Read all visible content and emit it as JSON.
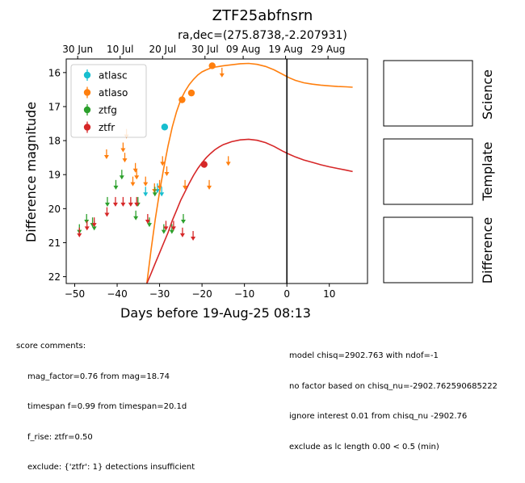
{
  "chart_data": {
    "type": "scatter",
    "title": "ZTF25abfnsrn",
    "subtitle": "ra,dec=(275.8738,-2.207931)",
    "xlabel": "Days before 19-Aug-25 08:13",
    "ylabel": "Difference magnitude",
    "xlim": [
      -52,
      19
    ],
    "ylim": [
      22.2,
      15.6
    ],
    "y_inverted": true,
    "x_ticks": [
      -50,
      -40,
      -30,
      -20,
      -10,
      0,
      10
    ],
    "x_tick_labels": [
      "−50",
      "−40",
      "−30",
      "−20",
      "−10",
      "0",
      "10"
    ],
    "y_ticks": [
      16,
      17,
      18,
      19,
      20,
      21,
      22
    ],
    "y_tick_labels": [
      "16",
      "17",
      "18",
      "19",
      "20",
      "21",
      "22"
    ],
    "top_axis_ticks": [
      {
        "x": -49.3,
        "label": "30 Jun"
      },
      {
        "x": -39.3,
        "label": "10 Jul"
      },
      {
        "x": -29.3,
        "label": "20 Jul"
      },
      {
        "x": -19.3,
        "label": "30 Jul"
      },
      {
        "x": -10.3,
        "label": "09 Aug"
      },
      {
        "x": -0.3,
        "label": "19 Aug"
      },
      {
        "x": 9.7,
        "label": "29 Aug"
      }
    ],
    "vline_x": 0,
    "legend": {
      "placement": "top-left",
      "entries": [
        "atlasc",
        "atlaso",
        "ztfg",
        "ztfr"
      ]
    },
    "series": [
      {
        "name": "atlasc",
        "color": "#17becf",
        "detections": [
          {
            "x": -28.8,
            "y": 17.6
          }
        ],
        "upper_limits": [
          {
            "x": -33.3,
            "y": 19.5
          },
          {
            "x": -30.5,
            "y": 19.4
          },
          {
            "x": -29.5,
            "y": 19.5
          }
        ]
      },
      {
        "name": "atlaso",
        "color": "#ff7f0e",
        "detections": [
          {
            "x": -24.7,
            "y": 16.8
          },
          {
            "x": -22.5,
            "y": 16.6
          },
          {
            "x": -17.6,
            "y": 15.8
          }
        ],
        "upper_limits": [
          {
            "x": -42.5,
            "y": 18.4
          },
          {
            "x": -38.6,
            "y": 18.2
          },
          {
            "x": -38.2,
            "y": 18.5
          },
          {
            "x": -37.8,
            "y": 17.8
          },
          {
            "x": -36.3,
            "y": 19.2
          },
          {
            "x": -35.7,
            "y": 18.8
          },
          {
            "x": -35.4,
            "y": 19.0
          },
          {
            "x": -33.3,
            "y": 19.2
          },
          {
            "x": -31.2,
            "y": 19.4
          },
          {
            "x": -30.0,
            "y": 19.3
          },
          {
            "x": -29.3,
            "y": 18.6
          },
          {
            "x": -28.3,
            "y": 18.9
          },
          {
            "x": -24.0,
            "y": 19.3
          },
          {
            "x": -18.3,
            "y": 19.3
          },
          {
            "x": -15.3,
            "y": 16.0
          },
          {
            "x": -13.8,
            "y": 18.6
          }
        ]
      },
      {
        "name": "ztfg",
        "color": "#2ca02c",
        "detections": [],
        "upper_limits": [
          {
            "x": -48.9,
            "y": 20.6
          },
          {
            "x": -47.2,
            "y": 20.3
          },
          {
            "x": -45.8,
            "y": 20.4
          },
          {
            "x": -45.4,
            "y": 20.5
          },
          {
            "x": -42.3,
            "y": 19.8
          },
          {
            "x": -40.3,
            "y": 19.3
          },
          {
            "x": -38.9,
            "y": 19.0
          },
          {
            "x": -35.6,
            "y": 20.2
          },
          {
            "x": -35.1,
            "y": 19.8
          },
          {
            "x": -32.4,
            "y": 20.4
          },
          {
            "x": -31.1,
            "y": 19.5
          },
          {
            "x": -29.0,
            "y": 20.6
          },
          {
            "x": -27.1,
            "y": 20.6
          },
          {
            "x": -24.4,
            "y": 20.3
          }
        ]
      },
      {
        "name": "ztfr",
        "color": "#d62728",
        "detections": [
          {
            "x": -19.5,
            "y": 18.7
          }
        ],
        "upper_limits": [
          {
            "x": -48.9,
            "y": 20.7
          },
          {
            "x": -47.1,
            "y": 20.5
          },
          {
            "x": -45.4,
            "y": 20.4
          },
          {
            "x": -42.4,
            "y": 20.1
          },
          {
            "x": -40.4,
            "y": 19.8
          },
          {
            "x": -38.6,
            "y": 19.8
          },
          {
            "x": -36.8,
            "y": 19.8
          },
          {
            "x": -35.4,
            "y": 19.8
          },
          {
            "x": -32.8,
            "y": 20.3
          },
          {
            "x": -28.5,
            "y": 20.5
          },
          {
            "x": -26.7,
            "y": 20.5
          },
          {
            "x": -24.6,
            "y": 20.7
          },
          {
            "x": -22.1,
            "y": 20.8
          }
        ]
      }
    ],
    "model_curves": [
      {
        "name": "atlaso",
        "color": "#ff7f0e",
        "x": [
          -33.0,
          -32.0,
          -31.0,
          -30.0,
          -29.0,
          -28.0,
          -27.0,
          -26.0,
          -25.0,
          -24.0,
          -23.0,
          -22.0,
          -21.0,
          -20.0,
          -19.0,
          -18.0,
          -17.0,
          -16.0,
          -15.0,
          -13.0,
          -11.0,
          -9.0,
          -7.0,
          -5.0,
          -3.0,
          -1.0,
          0.5,
          2.0,
          4.0,
          6.0,
          8.0,
          10.0,
          12.0,
          14.0,
          15.5
        ],
        "y": [
          22.2,
          21.2,
          20.3,
          19.5,
          18.8,
          18.15,
          17.6,
          17.15,
          16.8,
          16.55,
          16.35,
          16.2,
          16.07,
          15.98,
          15.92,
          15.87,
          15.84,
          15.82,
          15.8,
          15.77,
          15.74,
          15.73,
          15.76,
          15.82,
          15.92,
          16.05,
          16.15,
          16.23,
          16.3,
          16.34,
          16.37,
          16.39,
          16.41,
          16.42,
          16.43
        ]
      },
      {
        "name": "ztfr",
        "color": "#d62728",
        "x": [
          -33.0,
          -32.0,
          -31.0,
          -30.0,
          -29.0,
          -28.0,
          -27.0,
          -26.0,
          -25.0,
          -24.0,
          -23.0,
          -22.0,
          -21.0,
          -20.0,
          -19.0,
          -18.0,
          -17.0,
          -16.0,
          -15.0,
          -13.0,
          -11.0,
          -9.0,
          -7.0,
          -5.0,
          -3.0,
          -1.0,
          0.5,
          2.0,
          4.0,
          6.0,
          8.0,
          10.0,
          12.0,
          14.0,
          15.5
        ],
        "y": [
          22.2,
          21.9,
          21.6,
          21.3,
          21.0,
          20.7,
          20.35,
          20.05,
          19.75,
          19.5,
          19.25,
          19.02,
          18.82,
          18.65,
          18.5,
          18.38,
          18.27,
          18.19,
          18.12,
          18.03,
          17.98,
          17.96,
          17.99,
          18.06,
          18.17,
          18.31,
          18.4,
          18.48,
          18.57,
          18.64,
          18.71,
          18.77,
          18.82,
          18.87,
          18.91
        ]
      }
    ],
    "side_panels": [
      "Science",
      "Template",
      "Difference"
    ]
  },
  "comments_left": {
    "heading": "score comments:",
    "lines": [
      "mag_factor=0.76 from mag=18.74",
      "timespan f=0.99 from timespan=20.1d",
      "f_rise: ztfr=0.50",
      "exclude: {'ztfr': 1} detections insufficient"
    ]
  },
  "comments_right": {
    "lines": [
      "model chisq=2902.763 with ndof=-1",
      "no factor based on chisq_nu=-2902.762590685222",
      "ignore interest 0.01 from chisq_nu -2902.76",
      "exclude as lc length 0.00 < 0.5 (min)"
    ]
  }
}
